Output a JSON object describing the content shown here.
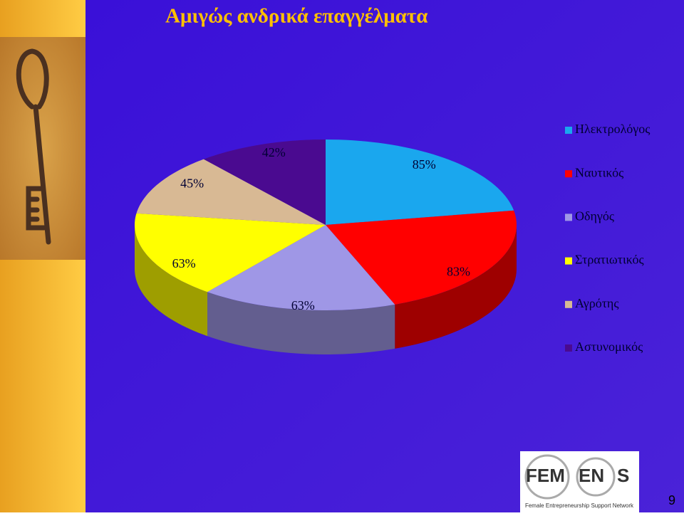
{
  "chart_data": {
    "type": "pie3d",
    "title": "Αμιγώς ανδρικά επαγγέλματα",
    "categories": [
      "Ηλεκτρολόγος",
      "Ναυτικός",
      "Οδηγός",
      "Στρατιωτικός",
      "Αγρότης",
      "Αστυνομικός"
    ],
    "values": [
      85,
      83,
      63,
      63,
      45,
      42
    ],
    "value_labels": [
      "85%",
      "83%",
      "63%",
      "63%",
      "45%",
      "42%"
    ],
    "colors": [
      "#1aa7ee",
      "#ff0000",
      "#9f97e6",
      "#ffff00",
      "#d8b994",
      "#4a0a90"
    ],
    "legend": "right"
  },
  "logo": {
    "parts": [
      "FEM",
      "EN",
      "S"
    ],
    "tagline": "Female Entrepreneurship Support Network"
  },
  "page_number": "9"
}
